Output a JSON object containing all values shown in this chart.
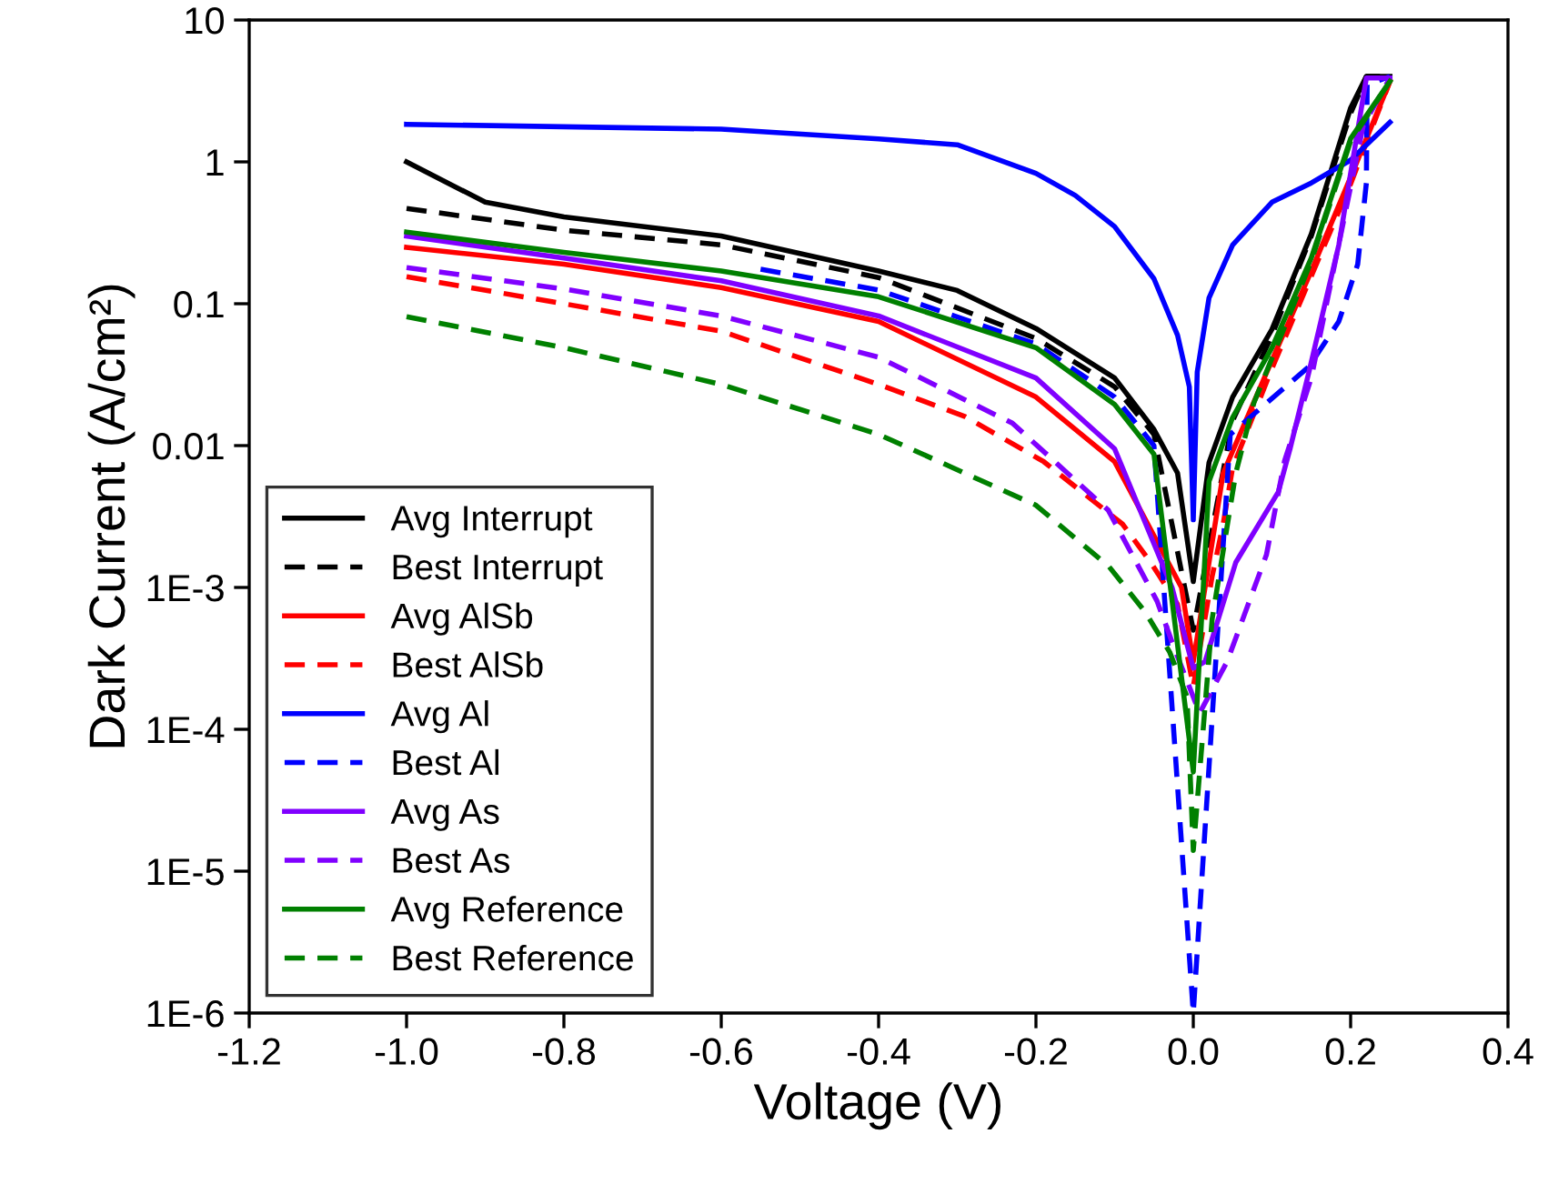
{
  "chart_data": {
    "type": "line",
    "xlabel": "Voltage (V)",
    "ylabel": "Dark Current (A/cm²)",
    "log": "y",
    "xlim": [
      -1.2,
      0.4
    ],
    "xticks": [
      {
        "value": -1.2,
        "label": "-1.2"
      },
      {
        "value": -1.0,
        "label": "-1.0"
      },
      {
        "value": -0.8,
        "label": "-0.8"
      },
      {
        "value": -0.6,
        "label": "-0.6"
      },
      {
        "value": -0.4,
        "label": "-0.4"
      },
      {
        "value": -0.2,
        "label": "-0.2"
      },
      {
        "value": 0.0,
        "label": "0.0"
      },
      {
        "value": 0.2,
        "label": "0.2"
      },
      {
        "value": 0.4,
        "label": "0.4"
      }
    ],
    "ylim": [
      1e-06,
      10
    ],
    "yticks": [
      {
        "value": 1e-06,
        "label": "1E-6"
      },
      {
        "value": 1e-05,
        "label": "1E-5"
      },
      {
        "value": 0.0001,
        "label": "1E-4"
      },
      {
        "value": 0.001,
        "label": "1E-3"
      },
      {
        "value": 0.01,
        "label": "0.01"
      },
      {
        "value": 0.1,
        "label": "0.1"
      },
      {
        "value": 1,
        "label": "1"
      },
      {
        "value": 10,
        "label": "10"
      }
    ],
    "grid": false,
    "legend": "bottom left",
    "series": [
      {
        "name": "Avg Interrupt",
        "color": "#000000",
        "line_style": "solid",
        "x": [
          -1.0,
          -0.9,
          -0.8,
          -0.6,
          -0.4,
          -0.3,
          -0.2,
          -0.1,
          -0.05,
          -0.02,
          0.0,
          0.02,
          0.05,
          0.1,
          0.15,
          0.2,
          0.22,
          0.25
        ],
        "values": [
          1.0,
          0.52,
          0.41,
          0.3,
          0.17,
          0.124,
          0.067,
          0.03,
          0.013,
          0.0064,
          0.0011,
          0.0076,
          0.022,
          0.066,
          0.31,
          2.4,
          4.0,
          4.0
        ]
      },
      {
        "name": "Best Interrupt",
        "color": "#000000",
        "line_style": "dashed",
        "x": [
          -1.0,
          -0.8,
          -0.6,
          -0.4,
          -0.2,
          -0.1,
          -0.05,
          0.0,
          0.05,
          0.1,
          0.15,
          0.2,
          0.22,
          0.25
        ],
        "values": [
          0.47,
          0.33,
          0.26,
          0.153,
          0.057,
          0.026,
          0.012,
          0.0005,
          0.015,
          0.06,
          0.3,
          2.2,
          4.0,
          4.0
        ]
      },
      {
        "name": "Avg AlSb",
        "color": "#ff0000",
        "line_style": "solid",
        "x": [
          -1.0,
          -0.8,
          -0.6,
          -0.4,
          -0.2,
          -0.1,
          -0.015,
          0.0,
          0.038,
          0.1,
          0.15,
          0.2,
          0.25
        ],
        "values": [
          0.25,
          0.19,
          0.13,
          0.075,
          0.022,
          0.0077,
          0.001,
          0.0003,
          0.0064,
          0.04,
          0.17,
          0.78,
          3.7
        ]
      },
      {
        "name": "Best AlSb",
        "color": "#ff0000",
        "line_style": "dashed",
        "x": [
          -1.0,
          -0.8,
          -0.6,
          -0.4,
          -0.29,
          -0.19,
          -0.09,
          -0.054,
          -0.02,
          0.0,
          0.024,
          0.038,
          0.05,
          0.1,
          0.2,
          0.25
        ],
        "values": [
          0.155,
          0.1,
          0.064,
          0.027,
          0.016,
          0.0077,
          0.0028,
          0.0015,
          0.00076,
          0.0002,
          0.0012,
          0.0028,
          0.007,
          0.035,
          0.7,
          3.7
        ]
      },
      {
        "name": "Avg Al",
        "color": "#0000ff",
        "line_style": "solid",
        "x": [
          -1.0,
          -0.6,
          -0.4,
          -0.3,
          -0.2,
          -0.15,
          -0.1,
          -0.05,
          -0.02,
          -0.005,
          0.0,
          0.005,
          0.02,
          0.05,
          0.1,
          0.15,
          0.2,
          0.25
        ],
        "values": [
          1.84,
          1.7,
          1.45,
          1.32,
          0.83,
          0.58,
          0.35,
          0.15,
          0.06,
          0.026,
          0.003,
          0.033,
          0.11,
          0.26,
          0.52,
          0.71,
          1.03,
          1.9
        ]
      },
      {
        "name": "Best Al",
        "color": "#0000ff",
        "line_style": "dashed",
        "x": [
          -0.55,
          -0.4,
          -0.2,
          -0.1,
          -0.05,
          0.0,
          0.047,
          0.147,
          0.185,
          0.209,
          0.22,
          0.221,
          0.25
        ],
        "values": [
          0.175,
          0.125,
          0.052,
          0.022,
          0.01,
          1e-06,
          0.012,
          0.036,
          0.075,
          0.19,
          0.71,
          3.5,
          4.0
        ]
      },
      {
        "name": "Avg As",
        "color": "#8000ff",
        "line_style": "solid",
        "x": [
          -1.0,
          -0.8,
          -0.6,
          -0.4,
          -0.2,
          -0.1,
          -0.027,
          0.0,
          0.015,
          0.054,
          0.108,
          0.123,
          0.147,
          0.185,
          0.22,
          0.25
        ],
        "values": [
          0.3,
          0.21,
          0.145,
          0.082,
          0.03,
          0.0095,
          0.001,
          0.00027,
          0.0003,
          0.0015,
          0.0047,
          0.0095,
          0.033,
          0.26,
          3.9,
          3.9
        ]
      },
      {
        "name": "Best As",
        "color": "#8000ff",
        "line_style": "dashed",
        "x": [
          -1.0,
          -0.8,
          -0.6,
          -0.4,
          -0.23,
          -0.108,
          -0.046,
          -0.023,
          0.008,
          0.043,
          0.093,
          0.116,
          0.15,
          0.216,
          0.25
        ],
        "values": [
          0.18,
          0.127,
          0.082,
          0.042,
          0.0144,
          0.0035,
          0.0008,
          0.00036,
          0.00013,
          0.0003,
          0.0017,
          0.0078,
          0.03,
          1.8,
          3.9
        ]
      },
      {
        "name": "Avg Reference",
        "color": "#008000",
        "line_style": "solid",
        "x": [
          -1.0,
          -0.8,
          -0.6,
          -0.4,
          -0.2,
          -0.1,
          -0.05,
          0.0,
          0.02,
          0.05,
          0.1,
          0.15,
          0.2,
          0.25
        ],
        "values": [
          0.32,
          0.23,
          0.17,
          0.112,
          0.049,
          0.0195,
          0.0087,
          5e-05,
          0.0056,
          0.0158,
          0.049,
          0.21,
          1.46,
          3.7
        ]
      },
      {
        "name": "Best Reference",
        "color": "#008000",
        "line_style": "dashed",
        "x": [
          -1.0,
          -0.8,
          -0.6,
          -0.4,
          -0.2,
          -0.107,
          -0.061,
          -0.03,
          -0.008,
          0.0,
          0.024,
          0.054,
          0.077,
          0.15,
          0.2,
          0.25
        ],
        "values": [
          0.081,
          0.049,
          0.027,
          0.012,
          0.0038,
          0.0014,
          0.00067,
          0.00035,
          0.00017,
          1.4e-05,
          0.0006,
          0.0064,
          0.02,
          0.2,
          1.4,
          3.7
        ]
      }
    ]
  }
}
